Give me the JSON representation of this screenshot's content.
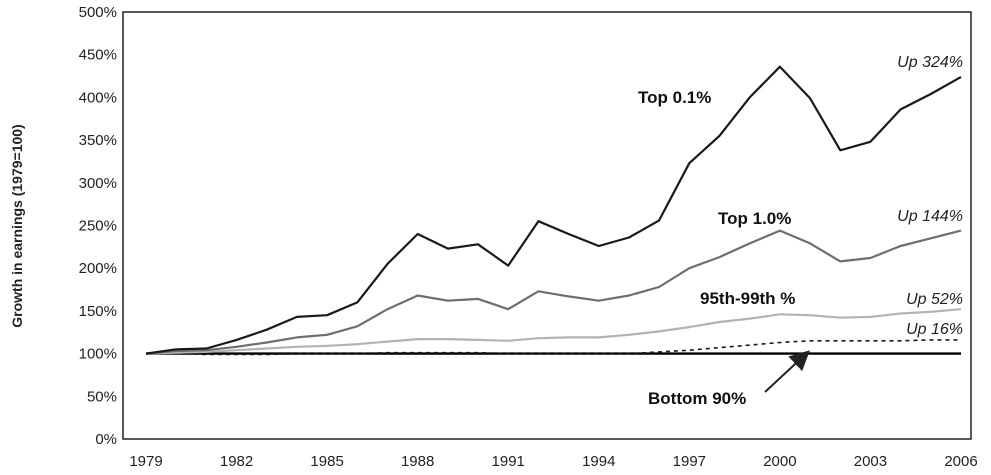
{
  "chart_data": {
    "type": "line",
    "ylabel": "Growth in earnings (1979=100)",
    "xlabel": "",
    "ylim": [
      0,
      500
    ],
    "xlim": [
      1979,
      2006
    ],
    "yticks": [
      "0%",
      "50%",
      "100%",
      "150%",
      "200%",
      "250%",
      "300%",
      "350%",
      "400%",
      "450%",
      "500%"
    ],
    "ytick_values": [
      0,
      50,
      100,
      150,
      200,
      250,
      300,
      350,
      400,
      450,
      500
    ],
    "xticks": [
      "1979",
      "1982",
      "1985",
      "1988",
      "1991",
      "1994",
      "1997",
      "2000",
      "2003",
      "2006"
    ],
    "xtick_values": [
      1979,
      1982,
      1985,
      1988,
      1991,
      1994,
      1997,
      2000,
      2003,
      2006
    ],
    "x": [
      1979,
      1980,
      1981,
      1982,
      1983,
      1984,
      1985,
      1986,
      1987,
      1988,
      1989,
      1990,
      1991,
      1992,
      1993,
      1994,
      1995,
      1996,
      1997,
      1998,
      1999,
      2000,
      2001,
      2002,
      2003,
      2004,
      2005,
      2006
    ],
    "series": [
      {
        "name": "Top 0.1%",
        "color": "#1a1a1a",
        "dashed": false,
        "values": [
          100,
          105,
          106,
          116,
          128,
          143,
          145,
          160,
          205,
          240,
          223,
          228,
          203,
          255,
          240,
          226,
          236,
          256,
          323,
          355,
          400,
          436,
          399,
          338,
          348,
          386,
          404,
          424
        ],
        "end_label": "Up 324%"
      },
      {
        "name": "Top 1.0%",
        "color": "#6e6e6e",
        "dashed": false,
        "values": [
          100,
          103,
          104,
          108,
          113,
          119,
          122,
          132,
          152,
          168,
          162,
          164,
          152,
          173,
          167,
          162,
          168,
          178,
          200,
          213,
          229,
          244,
          229,
          208,
          212,
          226,
          235,
          244
        ],
        "end_label": "Up 144%"
      },
      {
        "name": "95th-99th %",
        "color": "#b3b3b3",
        "dashed": false,
        "values": [
          100,
          101,
          102,
          104,
          106,
          108,
          109,
          111,
          114,
          117,
          117,
          116,
          115,
          118,
          119,
          119,
          122,
          126,
          131,
          137,
          141,
          146,
          145,
          142,
          143,
          147,
          149,
          152
        ],
        "end_label": "Up 52%"
      },
      {
        "name": "",
        "color": "#1a1a1a",
        "dashed": true,
        "values": [
          100,
          100,
          99,
          99,
          99,
          100,
          100,
          100,
          101,
          101,
          101,
          101,
          100,
          100,
          100,
          100,
          100,
          102,
          104,
          107,
          110,
          113,
          115,
          115,
          115,
          115,
          116,
          116
        ],
        "end_label": "Up 16%"
      },
      {
        "name": "Bottom 90%",
        "color": "#000000",
        "dashed": false,
        "values": [
          100,
          100,
          100,
          100,
          100,
          100,
          100,
          100,
          100,
          100,
          100,
          100,
          100,
          100,
          100,
          100,
          100,
          100,
          100,
          100,
          100,
          100,
          100,
          100,
          100,
          100,
          100,
          100
        ],
        "end_label": ""
      }
    ],
    "annotations": [
      {
        "text": "Top 0.1%",
        "style": "bold"
      },
      {
        "text": "Top 1.0%",
        "style": "bold"
      },
      {
        "text": "95th-99th %",
        "style": "bold"
      },
      {
        "text": "Bottom 90%",
        "style": "bold"
      },
      {
        "text": "Up 324%",
        "style": "italic"
      },
      {
        "text": "Up 144%",
        "style": "italic"
      },
      {
        "text": "Up 52%",
        "style": "italic"
      },
      {
        "text": "Up 16%",
        "style": "italic"
      }
    ],
    "arrow": {
      "from_label": "Bottom 90%",
      "to_x": 2001,
      "to_y": 100
    },
    "grid": false,
    "legend": "none"
  }
}
